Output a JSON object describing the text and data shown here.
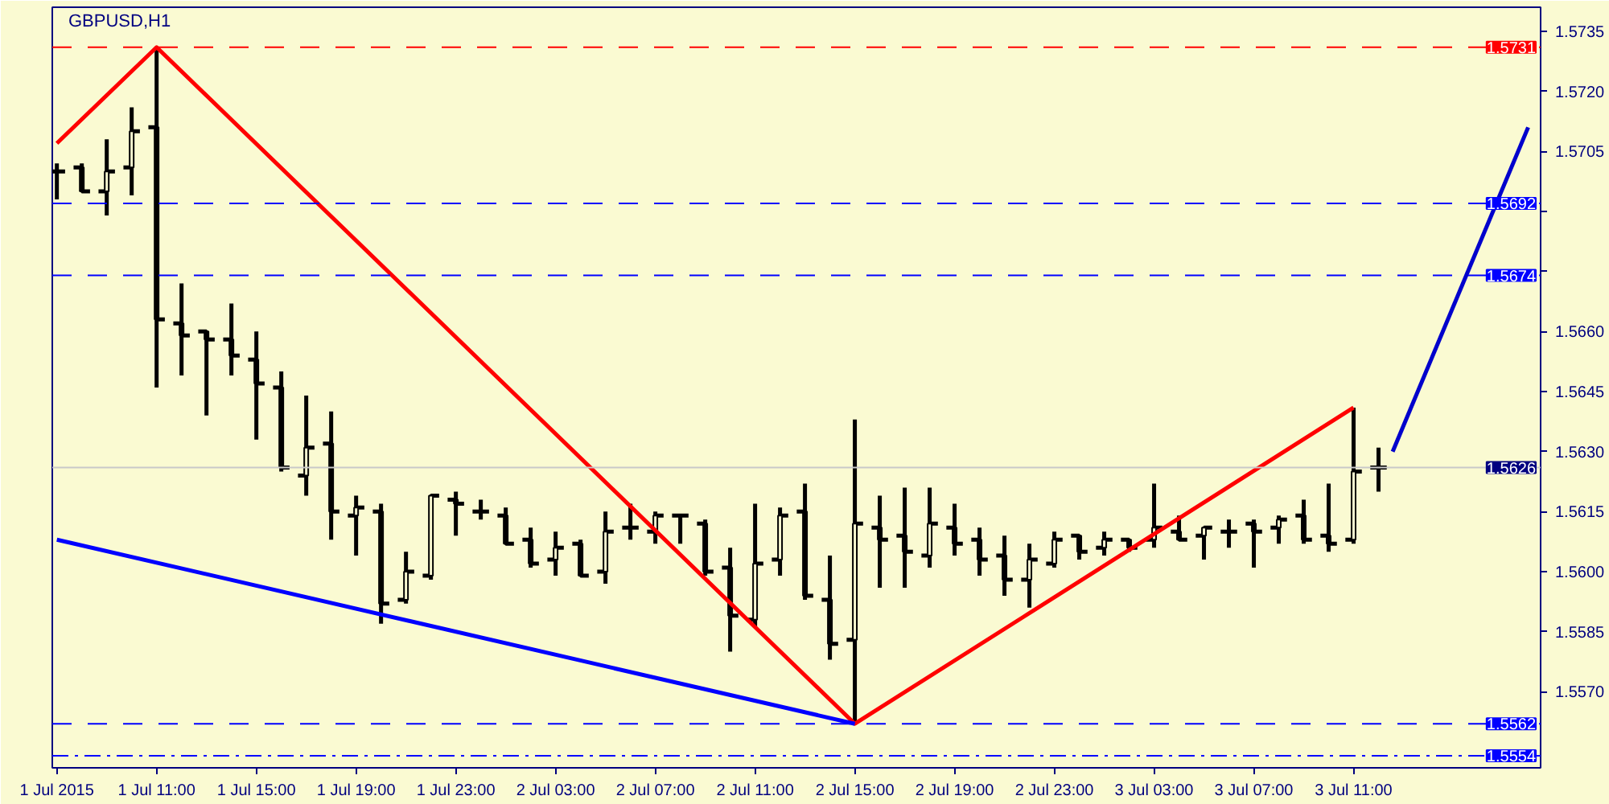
{
  "chart_data": {
    "type": "candlestick",
    "title": "GBPUSD,H1",
    "xlim": [
      "2015-07-01T06:49",
      "2015-07-03T18:30"
    ],
    "ylim": [
      1.5551,
      1.5741
    ],
    "xticks": [
      {
        "value": "2015-07-01T07:00",
        "label": "1 Jul 2015"
      },
      {
        "value": "2015-07-01T11:00",
        "label": "1 Jul 11:00"
      },
      {
        "value": "2015-07-01T15:00",
        "label": "1 Jul 15:00"
      },
      {
        "value": "2015-07-01T19:00",
        "label": "1 Jul 19:00"
      },
      {
        "value": "2015-07-01T23:00",
        "label": "1 Jul 23:00"
      },
      {
        "value": "2015-07-02T03:00",
        "label": "2 Jul 03:00"
      },
      {
        "value": "2015-07-02T07:00",
        "label": "2 Jul 07:00"
      },
      {
        "value": "2015-07-02T11:00",
        "label": "2 Jul 11:00"
      },
      {
        "value": "2015-07-02T15:00",
        "label": "2 Jul 15:00"
      },
      {
        "value": "2015-07-02T19:00",
        "label": "2 Jul 19:00"
      },
      {
        "value": "2015-07-02T23:00",
        "label": "2 Jul 23:00"
      },
      {
        "value": "2015-07-03T03:00",
        "label": "3 Jul 03:00"
      },
      {
        "value": "2015-07-03T07:00",
        "label": "3 Jul 07:00"
      },
      {
        "value": "2015-07-03T11:00",
        "label": "3 Jul 11:00"
      }
    ],
    "yticks": [
      {
        "value": 1.5735,
        "label": "1.5735"
      },
      {
        "value": 1.572,
        "label": "1.5720"
      },
      {
        "value": 1.5705,
        "label": "1.5705"
      },
      {
        "value": 1.569,
        "label": null
      },
      {
        "value": 1.5675,
        "label": null
      },
      {
        "value": 1.566,
        "label": "1.5660"
      },
      {
        "value": 1.5645,
        "label": "1.5645"
      },
      {
        "value": 1.563,
        "label": "1.5630"
      },
      {
        "value": 1.5615,
        "label": "1.5615"
      },
      {
        "value": 1.56,
        "label": "1.5600"
      },
      {
        "value": 1.5585,
        "label": "1.5585"
      },
      {
        "value": 1.557,
        "label": "1.5570"
      }
    ],
    "grid": false,
    "ref_lines": [
      {
        "axis": "y",
        "value": 1.5731,
        "label": "1.5731",
        "color": "#ff0000",
        "line_style": "dashed"
      },
      {
        "axis": "y",
        "value": 1.5692,
        "label": "1.5692",
        "color": "#0000ff",
        "line_style": "dashed"
      },
      {
        "axis": "y",
        "value": 1.5674,
        "label": "1.5674",
        "color": "#0000ff",
        "line_style": "dashed"
      },
      {
        "axis": "y",
        "value": 1.5626,
        "label": "1.5626",
        "color": "#c8c8c8",
        "line_style": "solid"
      },
      {
        "axis": "y",
        "value": 1.5562,
        "label": "1.5562",
        "color": "#0000ff",
        "line_style": "dashed"
      },
      {
        "axis": "y",
        "value": 1.5554,
        "label": "1.5554",
        "color": "#0000ff",
        "line_style": "dashdot"
      }
    ],
    "series": [
      {
        "color": "#000000",
        "x": [
          "2015-07-01T07:00",
          "2015-07-01T08:00",
          "2015-07-01T09:00",
          "2015-07-01T10:00",
          "2015-07-01T11:00",
          "2015-07-01T12:00",
          "2015-07-01T13:00",
          "2015-07-01T14:00",
          "2015-07-01T15:00",
          "2015-07-01T16:00",
          "2015-07-01T17:00",
          "2015-07-01T18:00",
          "2015-07-01T19:00",
          "2015-07-01T20:00",
          "2015-07-01T21:00",
          "2015-07-01T22:00",
          "2015-07-01T23:00",
          "2015-07-02T00:00",
          "2015-07-02T01:00",
          "2015-07-02T02:00",
          "2015-07-02T03:00",
          "2015-07-02T04:00",
          "2015-07-02T05:00",
          "2015-07-02T06:00",
          "2015-07-02T07:00",
          "2015-07-02T08:00",
          "2015-07-02T09:00",
          "2015-07-02T10:00",
          "2015-07-02T11:00",
          "2015-07-02T12:00",
          "2015-07-02T13:00",
          "2015-07-02T14:00",
          "2015-07-02T15:00",
          "2015-07-02T16:00",
          "2015-07-02T17:00",
          "2015-07-02T18:00",
          "2015-07-02T19:00",
          "2015-07-02T20:00",
          "2015-07-02T21:00",
          "2015-07-02T22:00",
          "2015-07-02T23:00",
          "2015-07-03T00:00",
          "2015-07-03T01:00",
          "2015-07-03T02:00",
          "2015-07-03T03:00",
          "2015-07-03T04:00",
          "2015-07-03T05:00",
          "2015-07-03T06:00",
          "2015-07-03T07:00",
          "2015-07-03T08:00",
          "2015-07-03T09:00",
          "2015-07-03T10:00",
          "2015-07-03T11:00",
          "2015-07-03T12:00"
        ],
        "ohlc": [
          [
            1.57,
            1.5702,
            1.5693,
            1.57
          ],
          [
            1.5701,
            1.5702,
            1.5695,
            1.5695
          ],
          [
            1.5695,
            1.5708,
            1.5689,
            1.57
          ],
          [
            1.5701,
            1.5716,
            1.5694,
            1.571
          ],
          [
            1.5711,
            1.5731,
            1.5646,
            1.5663
          ],
          [
            1.5662,
            1.5672,
            1.5649,
            1.5659
          ],
          [
            1.566,
            1.566,
            1.5639,
            1.5658
          ],
          [
            1.5658,
            1.5667,
            1.5649,
            1.5654
          ],
          [
            1.5653,
            1.566,
            1.5633,
            1.5647
          ],
          [
            1.5646,
            1.565,
            1.5625,
            1.5626
          ],
          [
            1.5624,
            1.5644,
            1.5619,
            1.5631
          ],
          [
            1.5632,
            1.564,
            1.5608,
            1.5615
          ],
          [
            1.5614,
            1.5619,
            1.5604,
            1.5616
          ],
          [
            1.5615,
            1.5617,
            1.5587,
            1.5592
          ],
          [
            1.5593,
            1.5605,
            1.5592,
            1.56
          ],
          [
            1.5599,
            1.5619,
            1.5598,
            1.5619
          ],
          [
            1.5618,
            1.562,
            1.5609,
            1.5617
          ],
          [
            1.5615,
            1.5618,
            1.5613,
            1.5615
          ],
          [
            1.5614,
            1.5616,
            1.5607,
            1.5607
          ],
          [
            1.5608,
            1.5611,
            1.5601,
            1.5602
          ],
          [
            1.5603,
            1.561,
            1.5599,
            1.5606
          ],
          [
            1.5607,
            1.5608,
            1.5599,
            1.5599
          ],
          [
            1.56,
            1.5615,
            1.5597,
            1.561
          ],
          [
            1.5611,
            1.5617,
            1.5608,
            1.5611
          ],
          [
            1.561,
            1.5615,
            1.5607,
            1.5614
          ],
          [
            1.5614,
            1.5614,
            1.5607,
            1.5614
          ],
          [
            1.5612,
            1.5613,
            1.5599,
            1.56
          ],
          [
            1.5601,
            1.5606,
            1.558,
            1.5589
          ],
          [
            1.5588,
            1.5617,
            1.5586,
            1.5602
          ],
          [
            1.5603,
            1.5616,
            1.5599,
            1.5614
          ],
          [
            1.5615,
            1.5622,
            1.5593,
            1.5594
          ],
          [
            1.5593,
            1.5604,
            1.5578,
            1.5582
          ],
          [
            1.5583,
            1.5638,
            1.5562,
            1.5612
          ],
          [
            1.5611,
            1.5619,
            1.5596,
            1.5608
          ],
          [
            1.5609,
            1.5621,
            1.5596,
            1.5605
          ],
          [
            1.5604,
            1.5621,
            1.5601,
            1.5612
          ],
          [
            1.5611,
            1.5617,
            1.5604,
            1.5607
          ],
          [
            1.5608,
            1.5611,
            1.5599,
            1.5603
          ],
          [
            1.5604,
            1.5609,
            1.5594,
            1.5598
          ],
          [
            1.5598,
            1.5607,
            1.5591,
            1.5603
          ],
          [
            1.5602,
            1.561,
            1.5601,
            1.5608
          ],
          [
            1.5609,
            1.5609,
            1.5603,
            1.5605
          ],
          [
            1.5606,
            1.561,
            1.5604,
            1.5608
          ],
          [
            1.5608,
            1.5608,
            1.5605,
            1.5606
          ],
          [
            1.5608,
            1.5622,
            1.5606,
            1.5611
          ],
          [
            1.561,
            1.5614,
            1.5608,
            1.5608
          ],
          [
            1.5609,
            1.5611,
            1.5603,
            1.5611
          ],
          [
            1.561,
            1.5613,
            1.5606,
            1.561
          ],
          [
            1.5612,
            1.5613,
            1.5601,
            1.561
          ],
          [
            1.5611,
            1.5614,
            1.5607,
            1.5613
          ],
          [
            1.5614,
            1.5618,
            1.5607,
            1.5608
          ],
          [
            1.5609,
            1.5622,
            1.5605,
            1.5607
          ],
          [
            1.5608,
            1.5641,
            1.5607,
            1.5625
          ],
          [
            1.5626,
            1.5631,
            1.562,
            1.5626
          ]
        ]
      },
      {
        "type": "line",
        "color": "#ff0000",
        "x": [
          "2015-07-01T07:00",
          "2015-07-01T11:00",
          "2015-07-02T15:00",
          "2015-07-03T11:00"
        ],
        "values": [
          1.5707,
          1.5731,
          1.5562,
          1.5641
        ]
      },
      {
        "type": "line",
        "color": "#0000ff",
        "x": [
          "2015-07-01T07:00",
          "2015-07-02T15:00"
        ],
        "values": [
          1.5608,
          1.5562
        ]
      },
      {
        "type": "line",
        "color": "#0000cc",
        "x": [
          "2015-07-03T12:34",
          "2015-07-03T18:00"
        ],
        "values": [
          1.563,
          1.5711
        ]
      }
    ]
  }
}
